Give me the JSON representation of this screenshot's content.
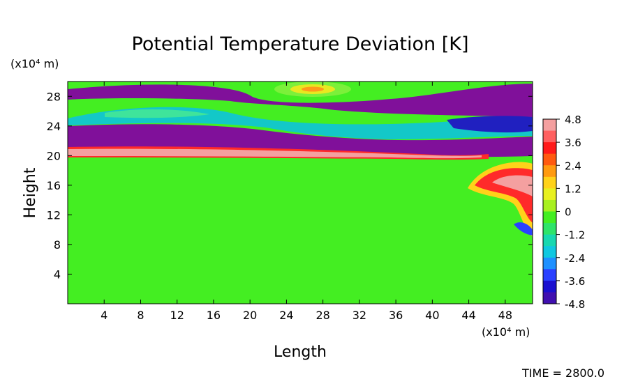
{
  "chart_data": {
    "type": "heatmap",
    "title": "Potential Temperature Deviation [K]",
    "xlabel": "Length",
    "ylabel": "Height",
    "x_unit": "(x10⁴ m)",
    "y_unit": "(x10⁴ m)",
    "x_ticks": [
      4,
      8,
      12,
      16,
      20,
      24,
      28,
      32,
      36,
      40,
      44,
      48
    ],
    "y_ticks": [
      4,
      8,
      12,
      16,
      20,
      24,
      28
    ],
    "xlim": [
      0,
      51
    ],
    "ylim": [
      0,
      30
    ],
    "colorbar": {
      "labels": [
        "4.8",
        "3.6",
        "2.4",
        "1.2",
        "0",
        "-1.2",
        "-2.4",
        "-3.6",
        "-4.8"
      ],
      "values": [
        4.8,
        3.6,
        2.4,
        1.2,
        0,
        -1.2,
        -2.4,
        -3.6,
        -4.8
      ],
      "range": [
        -4.8,
        4.8
      ]
    },
    "field_regions": [
      {
        "feature": "neutral",
        "value": 0,
        "y_range": [
          0,
          19.5
        ],
        "x_range": [
          0,
          51
        ]
      },
      {
        "feature": "warm layer",
        "value": 4.8,
        "y_range": [
          19.5,
          21.3
        ],
        "x_range": [
          0,
          46
        ]
      },
      {
        "feature": "cold band",
        "value": -4.8,
        "y_range": [
          21.3,
          24
        ],
        "x_range": [
          0,
          51
        ]
      },
      {
        "feature": "cold band",
        "value": -4.8,
        "y_range": [
          25.5,
          29.5
        ],
        "x_range": [
          0,
          51
        ]
      },
      {
        "feature": "neutral band",
        "value": -1.5,
        "y_range": [
          24,
          25.5
        ],
        "x_range": [
          0,
          51
        ]
      },
      {
        "feature": "warm blob",
        "value": 1.5,
        "center": [
          27,
          29
        ],
        "x_range": [
          24,
          33
        ]
      },
      {
        "feature": "warm vortex",
        "value": 4.8,
        "center": [
          49,
          16.5
        ],
        "x_range": [
          44,
          51
        ]
      }
    ],
    "annotation": "TIME = 2800.0"
  },
  "colors": {
    "c_pos_max": "#f4a0a0",
    "c_zero": "#44ee22",
    "c_neg_max": "#80109a"
  }
}
